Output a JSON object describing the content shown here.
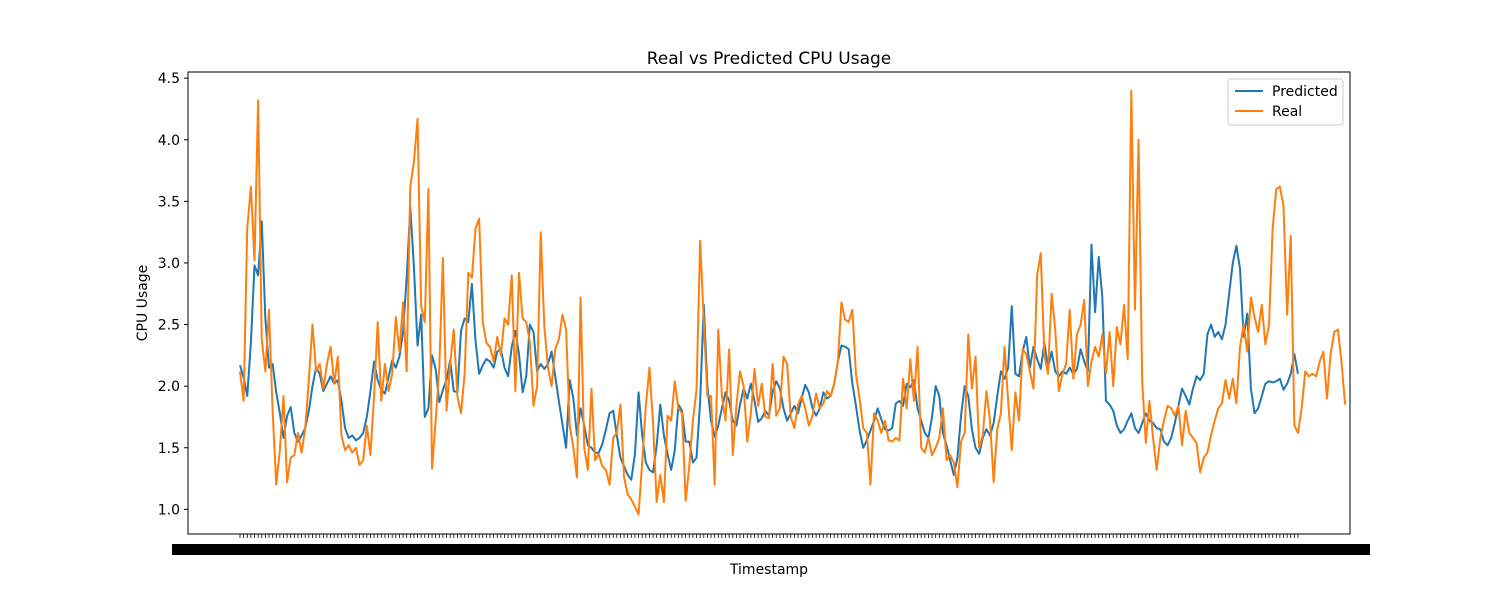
{
  "chart_data": {
    "type": "line",
    "title": "Real vs Predicted CPU Usage",
    "xlabel": "Timestamp",
    "ylabel": "CPU Usage",
    "ylim": [
      0.8,
      4.55
    ],
    "y_ticks": [
      "1.0",
      "1.5",
      "2.0",
      "2.5",
      "3.0",
      "3.5",
      "4.0",
      "4.5"
    ],
    "grid": false,
    "legend": "top-right",
    "x_tick_labels_overlapping": true,
    "series": [
      {
        "name": "Predicted",
        "color": "#1f77b4",
        "values": [
          2.17,
          2.07,
          1.92,
          2.35,
          2.98,
          2.9,
          3.34,
          2.55,
          2.15,
          2.18,
          1.95,
          1.78,
          1.58,
          1.76,
          1.83,
          1.62,
          1.55,
          1.6,
          1.66,
          1.8,
          2.0,
          2.15,
          2.1,
          1.96,
          2.02,
          2.08,
          2.02,
          2.05,
          1.88,
          1.66,
          1.58,
          1.6,
          1.56,
          1.58,
          1.62,
          1.75,
          1.96,
          2.2,
          2.05,
          1.97,
          1.94,
          2.07,
          2.21,
          2.15,
          2.24,
          2.44,
          2.88,
          3.45,
          2.97,
          2.33,
          2.58,
          1.75,
          1.82,
          2.25,
          2.14,
          1.87,
          1.97,
          2.05,
          2.21,
          1.96,
          1.95,
          2.45,
          2.55,
          2.52,
          2.83,
          2.37,
          2.1,
          2.17,
          2.22,
          2.2,
          2.15,
          2.28,
          2.3,
          2.15,
          2.08,
          2.32,
          2.45,
          2.26,
          1.95,
          2.08,
          2.5,
          2.44,
          2.12,
          2.18,
          2.14,
          2.18,
          2.28,
          2.08,
          1.88,
          1.69,
          1.5,
          2.05,
          1.9,
          1.6,
          1.82,
          1.68,
          1.52,
          1.5,
          1.46,
          1.46,
          1.53,
          1.65,
          1.78,
          1.8,
          1.6,
          1.42,
          1.35,
          1.28,
          1.24,
          1.45,
          1.95,
          1.6,
          1.38,
          1.32,
          1.3,
          1.52,
          1.85,
          1.6,
          1.45,
          1.32,
          1.48,
          1.85,
          1.8,
          1.55,
          1.55,
          1.38,
          1.42,
          1.88,
          2.66,
          2.0,
          1.72,
          1.59,
          1.68,
          1.82,
          1.95,
          1.88,
          1.72,
          1.68,
          1.85,
          1.98,
          1.9,
          2.02,
          1.88,
          1.71,
          1.74,
          1.8,
          1.76,
          1.96,
          2.04,
          1.98,
          1.82,
          1.72,
          1.78,
          1.84,
          1.78,
          1.9,
          2.01,
          1.95,
          1.82,
          1.76,
          1.82,
          1.95,
          1.9,
          1.92,
          2.02,
          2.2,
          2.33,
          2.32,
          2.3,
          2.02,
          1.84,
          1.64,
          1.5,
          1.56,
          1.64,
          1.72,
          1.82,
          1.73,
          1.65,
          1.64,
          1.66,
          1.86,
          1.88,
          1.84,
          2.02,
          1.99,
          2.05,
          1.82,
          1.72,
          1.62,
          1.58,
          1.75,
          2.0,
          1.92,
          1.62,
          1.52,
          1.4,
          1.28,
          1.42,
          1.76,
          2.0,
          1.92,
          1.65,
          1.5,
          1.45,
          1.58,
          1.65,
          1.6,
          1.7,
          1.92,
          2.12,
          2.06,
          2.15,
          2.65,
          2.1,
          2.08,
          2.28,
          2.4,
          2.15,
          2.32,
          2.22,
          2.14,
          2.35,
          2.15,
          2.28,
          2.12,
          2.08,
          2.12,
          2.1,
          2.15,
          2.1,
          2.14,
          2.3,
          2.2,
          2.12,
          3.15,
          2.6,
          3.05,
          2.72,
          1.88,
          1.85,
          1.8,
          1.68,
          1.62,
          1.65,
          1.72,
          1.78,
          1.66,
          1.62,
          1.7,
          1.78,
          1.72,
          1.7,
          1.66,
          1.65,
          1.55,
          1.52,
          1.58,
          1.7,
          1.84,
          1.98,
          1.92,
          1.85,
          1.98,
          2.08,
          2.05,
          2.1,
          2.42,
          2.5,
          2.4,
          2.44,
          2.38,
          2.5,
          2.75,
          3.0,
          3.14,
          2.95,
          2.4,
          2.59,
          1.98,
          1.78,
          1.82,
          1.92,
          2.02,
          2.04,
          2.03,
          2.04,
          2.06,
          1.97,
          2.02,
          2.1,
          2.26,
          2.1
        ]
      },
      {
        "name": "Real",
        "color": "#ff7f0e",
        "values": [
          2.12,
          1.88,
          3.28,
          3.62,
          3.02,
          4.32,
          2.38,
          2.12,
          2.62,
          1.8,
          1.2,
          1.48,
          1.92,
          1.22,
          1.42,
          1.44,
          1.62,
          1.46,
          1.66,
          2.05,
          2.5,
          2.12,
          2.18,
          1.98,
          2.18,
          2.32,
          2.02,
          2.24,
          1.6,
          1.48,
          1.52,
          1.46,
          1.5,
          1.36,
          1.4,
          1.68,
          1.44,
          1.92,
          2.52,
          1.88,
          2.18,
          1.96,
          2.1,
          2.56,
          2.28,
          2.68,
          2.12,
          3.62,
          3.82,
          4.17,
          2.65,
          2.52,
          3.6,
          1.33,
          1.72,
          2.15,
          3.04,
          1.8,
          2.18,
          2.46,
          1.92,
          1.78,
          2.1,
          2.92,
          2.88,
          3.28,
          3.36,
          2.52,
          2.35,
          2.32,
          2.2,
          2.4,
          2.25,
          2.55,
          2.5,
          2.9,
          1.96,
          2.92,
          2.55,
          2.52,
          2.36,
          1.84,
          2.0,
          3.25,
          2.48,
          2.15,
          2.0,
          2.3,
          2.38,
          2.58,
          2.46,
          1.68,
          1.5,
          1.26,
          2.72,
          1.5,
          1.32,
          1.98,
          1.4,
          1.45,
          1.35,
          1.32,
          1.2,
          1.58,
          1.62,
          1.85,
          1.26,
          1.12,
          1.08,
          1.02,
          0.96,
          1.38,
          1.84,
          2.15,
          1.7,
          1.06,
          1.28,
          1.06,
          1.76,
          1.72,
          2.04,
          1.82,
          1.78,
          1.07,
          1.35,
          1.72,
          1.97,
          3.18,
          2.52,
          1.92,
          1.92,
          1.2,
          2.46,
          1.92,
          1.72,
          2.3,
          1.44,
          1.84,
          2.12,
          2.0,
          1.55,
          1.78,
          2.14,
          1.84,
          2.02,
          1.75,
          1.74,
          2.18,
          1.76,
          1.82,
          2.24,
          2.18,
          1.75,
          1.66,
          1.85,
          1.92,
          1.82,
          1.68,
          1.76,
          1.94,
          1.82,
          1.86,
          1.96,
          1.92,
          2.02,
          2.2,
          2.68,
          2.54,
          2.52,
          2.62,
          2.1,
          1.9,
          1.66,
          1.62,
          1.2,
          1.78,
          1.72,
          1.62,
          1.72,
          1.56,
          1.55,
          1.58,
          1.56,
          2.06,
          1.82,
          2.22,
          1.88,
          2.32,
          1.5,
          1.46,
          1.58,
          1.44,
          1.5,
          1.58,
          1.82,
          1.4,
          1.44,
          1.38,
          1.18,
          1.55,
          1.62,
          2.42,
          1.98,
          2.24,
          1.5,
          1.6,
          1.96,
          1.72,
          1.22,
          1.65,
          1.78,
          2.32,
          1.88,
          1.48,
          1.95,
          1.72,
          2.3,
          2.26,
          2.12,
          1.98,
          2.9,
          3.08,
          2.25,
          2.1,
          2.75,
          2.46,
          1.96,
          2.1,
          2.18,
          2.62,
          2.06,
          2.42,
          2.5,
          2.7,
          2.0,
          2.2,
          2.32,
          2.24,
          2.42,
          2.1,
          2.44,
          2.0,
          2.48,
          2.34,
          2.66,
          2.22,
          4.4,
          2.62,
          4.0,
          2.04,
          1.54,
          1.88,
          1.58,
          1.32,
          1.58,
          1.72,
          1.84,
          1.82,
          1.76,
          1.84,
          1.52,
          1.8,
          1.62,
          1.58,
          1.54,
          1.3,
          1.42,
          1.46,
          1.6,
          1.72,
          1.82,
          1.86,
          2.05,
          1.9,
          2.06,
          1.86,
          2.32,
          2.5,
          2.28,
          2.72,
          2.56,
          2.44,
          2.66,
          2.34,
          2.5,
          3.28,
          3.6,
          3.62,
          3.46,
          2.58,
          3.22,
          1.68,
          1.62,
          1.82,
          2.12,
          2.08,
          2.1,
          2.08,
          2.2,
          2.28,
          1.9,
          2.26,
          2.44,
          2.46,
          2.2,
          1.85
        ]
      }
    ]
  }
}
